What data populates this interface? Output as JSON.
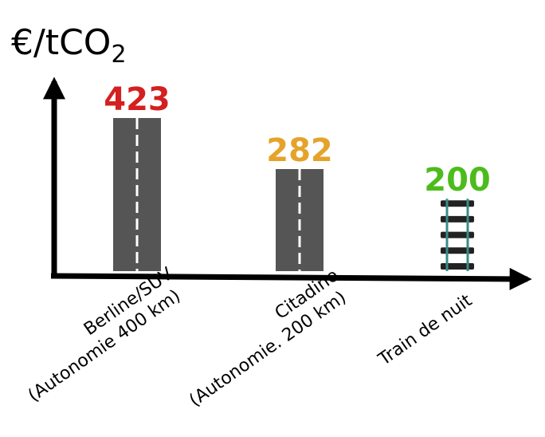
{
  "chart_data": {
    "type": "bar",
    "ylabel_main": "€/tCO",
    "ylabel_sub": "2",
    "categories": [
      {
        "lines": [
          "Berline/SUV",
          "(Autonomie 400 km)"
        ]
      },
      {
        "lines": [
          "Citadine",
          "(Autonomie. 200 km)"
        ]
      },
      {
        "lines": [
          "Train de nuit"
        ]
      }
    ],
    "values": [
      423,
      282,
      200
    ],
    "value_labels": [
      "423",
      "282",
      "200"
    ],
    "ylim": [
      0,
      423
    ],
    "bar_styles": [
      "road",
      "road",
      "rail"
    ],
    "colors": {
      "value_1": "#d42020",
      "value_2": "#e5a32a",
      "value_3": "#4cbc1c",
      "road": "#555555",
      "road_marking": "#ffffff",
      "rail": "#222222",
      "rail_tint": "#3a8c86",
      "axis": "#000000"
    }
  }
}
